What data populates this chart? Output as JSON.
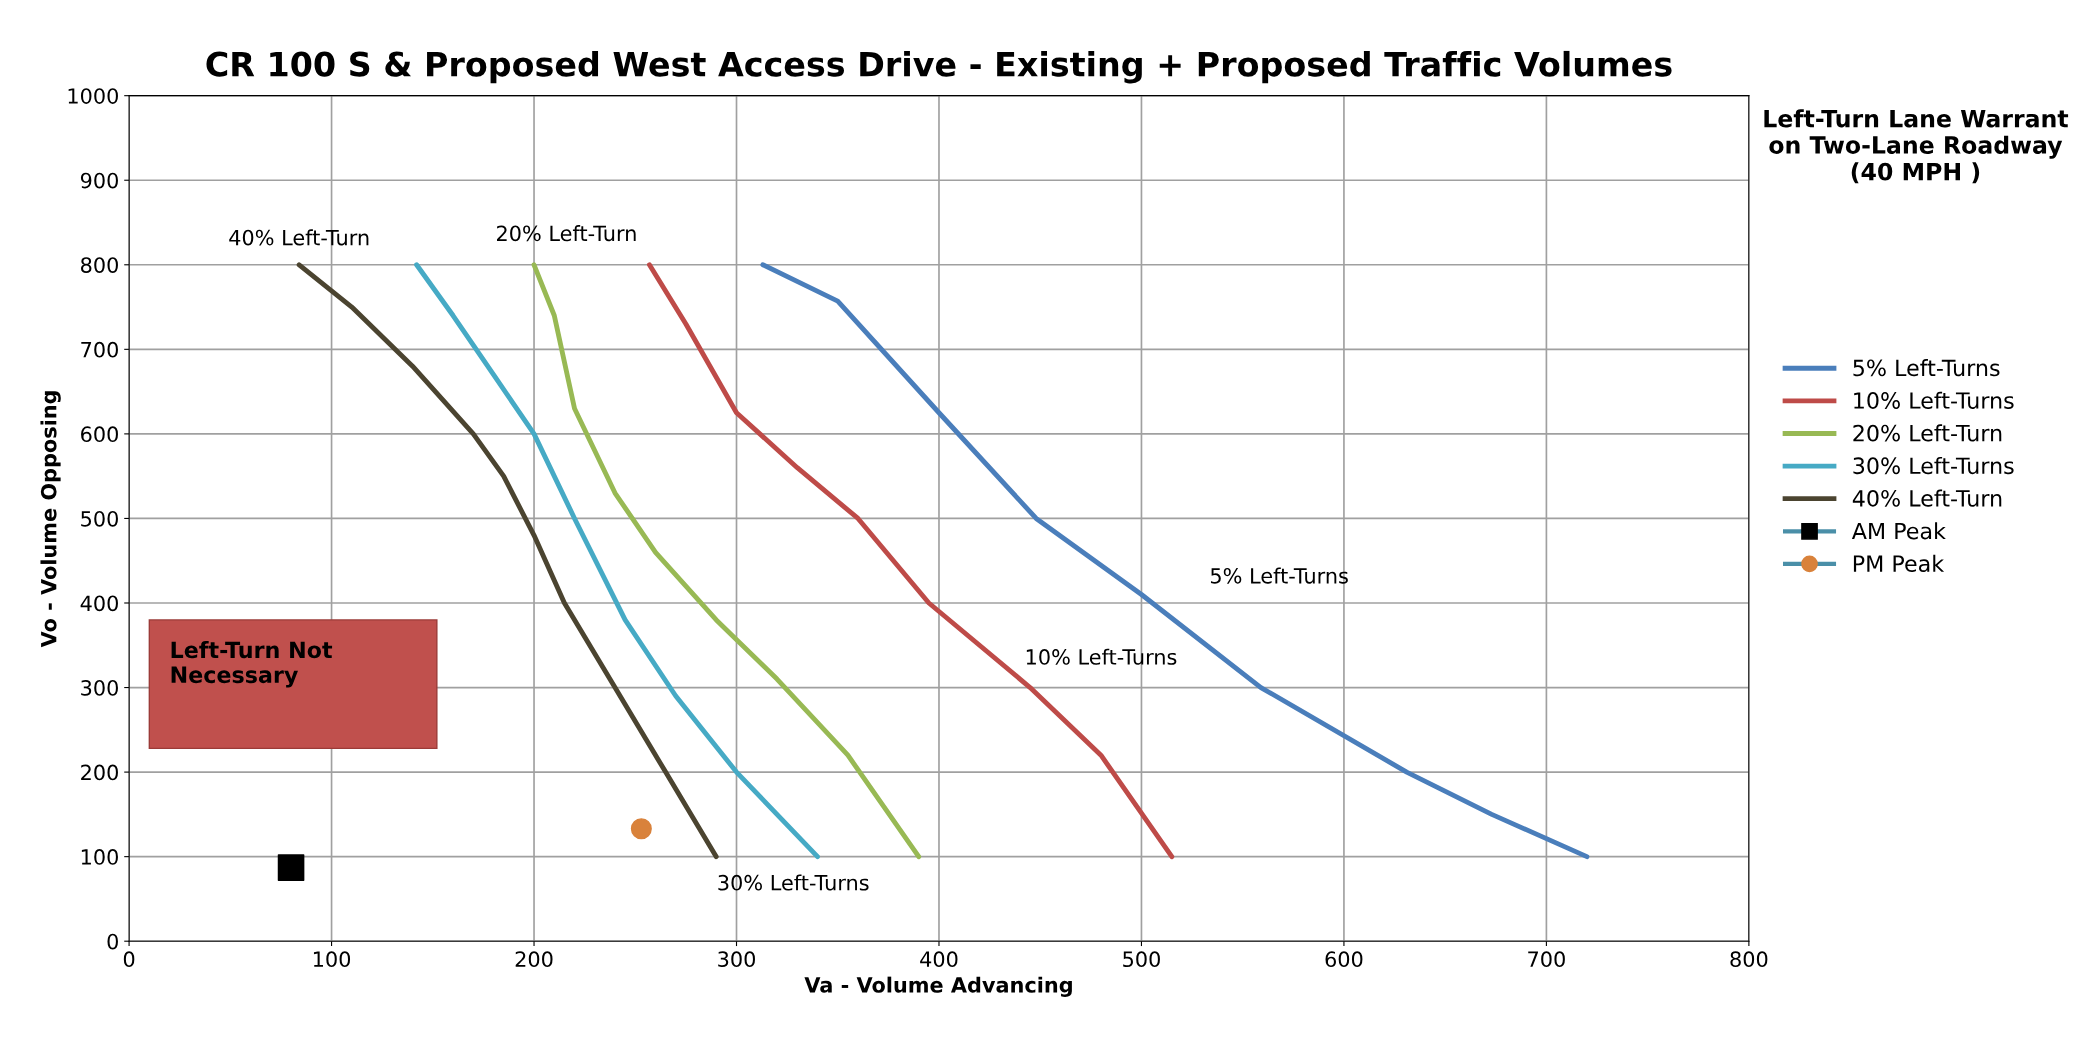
{
  "chart_data": {
    "type": "line",
    "title": "CR 100 S & Proposed West Access Drive - Existing + Proposed Traffic Volumes",
    "xlabel": "Va - Volume Advancing",
    "ylabel": "Vo - Volume Opposing",
    "legend_title": "Left-Turn Lane Warrant\non Two-Lane Roadway\n(40 MPH )",
    "series": [
      {
        "name": "5% Left-Turns",
        "color": "#4a7ebb",
        "x": [
          313,
          350,
          400,
          448,
          500,
          559,
          631,
          673,
          720
        ],
        "values": [
          800,
          757,
          625,
          500,
          410,
          300,
          200,
          150,
          100
        ]
      },
      {
        "name": "10% Left-Turns",
        "color": "#be4b48",
        "x": [
          257,
          275,
          300,
          330,
          360,
          395,
          445,
          480,
          515
        ],
        "values": [
          800,
          730,
          625,
          560,
          500,
          400,
          300,
          220,
          100
        ]
      },
      {
        "name": "20% Left-Turn",
        "color": "#98b954",
        "x": [
          200,
          210,
          220,
          240,
          260,
          290,
          320,
          355,
          390
        ],
        "values": [
          800,
          740,
          630,
          530,
          460,
          380,
          310,
          220,
          100
        ]
      },
      {
        "name": "30% Left-Turns",
        "color": "#46aac5",
        "x": [
          142,
          160,
          180,
          200,
          220,
          245,
          270,
          300,
          340
        ],
        "values": [
          800,
          740,
          670,
          600,
          500,
          380,
          290,
          200,
          100
        ]
      },
      {
        "name": "40% Left-Turn",
        "color": "#4b4430",
        "x": [
          84,
          110,
          140,
          170,
          185,
          200,
          215,
          240,
          265,
          290
        ],
        "values": [
          800,
          750,
          680,
          600,
          550,
          480,
          400,
          300,
          200,
          100
        ]
      },
      {
        "name": "AM Peak",
        "type": "scatter",
        "marker": "square",
        "color": "#000000",
        "x": [
          80
        ],
        "values": [
          87
        ]
      },
      {
        "name": "PM Peak",
        "type": "scatter",
        "marker": "circle",
        "color": "#d9823b",
        "x": [
          253
        ],
        "values": [
          133
        ]
      }
    ],
    "xlim": [
      0,
      800
    ],
    "xticks": [
      0,
      100,
      200,
      300,
      400,
      500,
      600,
      700,
      800
    ],
    "ylim": [
      0,
      1000
    ],
    "yticks": [
      0,
      100,
      200,
      300,
      400,
      500,
      600,
      700,
      800,
      900,
      1000
    ],
    "grid": true,
    "legend": "right",
    "marker": "none",
    "line_style": "solid",
    "annotations": [
      "40% Left-Turn",
      "20% Left-Turn",
      "5% Left-Turns",
      "10% Left-Turns",
      "30% Left-Turns",
      "Left-Turn Not\nNecessary"
    ]
  }
}
